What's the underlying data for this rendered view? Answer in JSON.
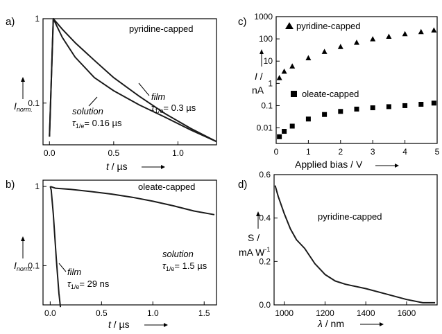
{
  "chart_data": [
    {
      "panel": "a)",
      "type": "line",
      "annotation": "pyridine-capped",
      "xlabel_var": "t",
      "xlabel_unit": " / µs",
      "ylabel_var": "I",
      "ylabel_sub": "norm.",
      "xlim": [
        -0.05,
        1.3
      ],
      "ylim": [
        0.032,
        1.0
      ],
      "ylog": true,
      "xticks": [
        0.0,
        0.5,
        1.0
      ],
      "xtick_labels": [
        "0.0",
        "0.5",
        "1.0"
      ],
      "yticks": [
        0.1,
        1
      ],
      "ytick_labels": [
        "0.1",
        "1"
      ],
      "series": [
        {
          "label_main": "film",
          "label_tau": "τ",
          "label_sub": "1/e",
          "label_val": "= 0.3 µs",
          "x": [
            0,
            0.03,
            0.1,
            0.2,
            0.35,
            0.5,
            0.7,
            0.9,
            1.1,
            1.3
          ],
          "y": [
            0.04,
            1.0,
            0.75,
            0.52,
            0.32,
            0.2,
            0.12,
            0.075,
            0.05,
            0.035
          ]
        },
        {
          "label_main": "solution",
          "label_tau": "τ",
          "label_sub": "1/e",
          "label_val": "= 0.16 µs",
          "x": [
            0,
            0.03,
            0.1,
            0.2,
            0.35,
            0.5,
            0.7,
            0.9,
            1.1,
            1.3
          ],
          "y": [
            0.04,
            1.0,
            0.6,
            0.35,
            0.2,
            0.14,
            0.095,
            0.068,
            0.048,
            0.035
          ]
        }
      ]
    },
    {
      "panel": "b)",
      "type": "line",
      "annotation": "oleate-capped",
      "xlabel_var": "t",
      "xlabel_unit": " / µs",
      "ylabel_var": "I",
      "ylabel_sub": "norm.",
      "xlim": [
        -0.07,
        1.62
      ],
      "ylim": [
        0.032,
        1.2
      ],
      "ylog": true,
      "xticks": [
        0.0,
        0.5,
        1.0,
        1.5
      ],
      "xtick_labels": [
        "0.0",
        "0.5",
        "1.0",
        "1.5"
      ],
      "yticks": [
        0.1,
        1
      ],
      "ytick_labels": [
        "0.1",
        "1"
      ],
      "series": [
        {
          "label_main": "film",
          "label_tau": "τ",
          "label_sub": "1/e",
          "label_val": "= 29 ns",
          "x": [
            0,
            0.01,
            0.03,
            0.06,
            0.085,
            0.1
          ],
          "y": [
            1.0,
            0.9,
            0.45,
            0.12,
            0.045,
            0.03
          ]
        },
        {
          "label_main": "solution",
          "label_tau": "τ",
          "label_sub": "1/e",
          "label_val": "= 1.5 µs",
          "x": [
            0,
            0.05,
            0.2,
            0.4,
            0.6,
            0.8,
            1.0,
            1.2,
            1.4,
            1.6
          ],
          "y": [
            1.0,
            0.95,
            0.92,
            0.86,
            0.8,
            0.73,
            0.65,
            0.57,
            0.49,
            0.44
          ]
        }
      ]
    },
    {
      "panel": "c)",
      "type": "scatter",
      "xlabel_text": "Applied bias / V",
      "ylabel_var": "I",
      "ylabel_unit": "nA",
      "xlim": [
        0,
        5
      ],
      "ylim": [
        0.002,
        1000
      ],
      "ylog": true,
      "xticks": [
        0,
        1,
        2,
        3,
        4,
        5
      ],
      "xtick_labels": [
        "0",
        "1",
        "2",
        "3",
        "4",
        "5"
      ],
      "yticks": [
        0.01,
        0.1,
        1,
        10,
        100,
        1000
      ],
      "ytick_labels": [
        "0.01",
        "0.1",
        "1",
        "10",
        "100",
        "1000"
      ],
      "series": [
        {
          "name": "pyridine-capped",
          "marker": "triangle",
          "x": [
            0.1,
            0.25,
            0.5,
            1.0,
            1.5,
            2.0,
            2.5,
            3.0,
            3.5,
            4.0,
            4.5,
            4.9
          ],
          "y": [
            1.8,
            3.5,
            6.0,
            14,
            27,
            45,
            70,
            100,
            130,
            170,
            210,
            250
          ]
        },
        {
          "name": "oleate-capped",
          "marker": "square",
          "x": [
            0.1,
            0.25,
            0.5,
            1.0,
            1.5,
            2.0,
            2.5,
            3.0,
            3.5,
            4.0,
            4.5,
            4.9
          ],
          "y": [
            0.004,
            0.007,
            0.012,
            0.025,
            0.04,
            0.055,
            0.07,
            0.08,
            0.09,
            0.1,
            0.115,
            0.13
          ]
        }
      ]
    },
    {
      "panel": "d)",
      "type": "line",
      "annotation": "pyridine-capped",
      "xlabel_var": "λ",
      "xlabel_unit": " / nm",
      "ylabel_text1": "S /",
      "ylabel_text2": "mA W",
      "ylabel_sup": "-1",
      "xlim": [
        950,
        1750
      ],
      "ylim": [
        0.0,
        0.6
      ],
      "xticks": [
        1000,
        1200,
        1400,
        1600
      ],
      "xtick_labels": [
        "1000",
        "1200",
        "1400",
        "1600"
      ],
      "yticks": [
        0.0,
        0.2,
        0.4,
        0.6
      ],
      "ytick_labels": [
        "0.0",
        "0.2",
        "0.4",
        "0.6"
      ],
      "series": [
        {
          "x": [
            955,
            970,
            1000,
            1030,
            1060,
            1100,
            1150,
            1200,
            1250,
            1300,
            1400,
            1500,
            1600,
            1680,
            1740
          ],
          "y": [
            0.55,
            0.5,
            0.42,
            0.35,
            0.3,
            0.26,
            0.19,
            0.14,
            0.11,
            0.095,
            0.075,
            0.05,
            0.025,
            0.01,
            0.01
          ]
        }
      ]
    }
  ]
}
